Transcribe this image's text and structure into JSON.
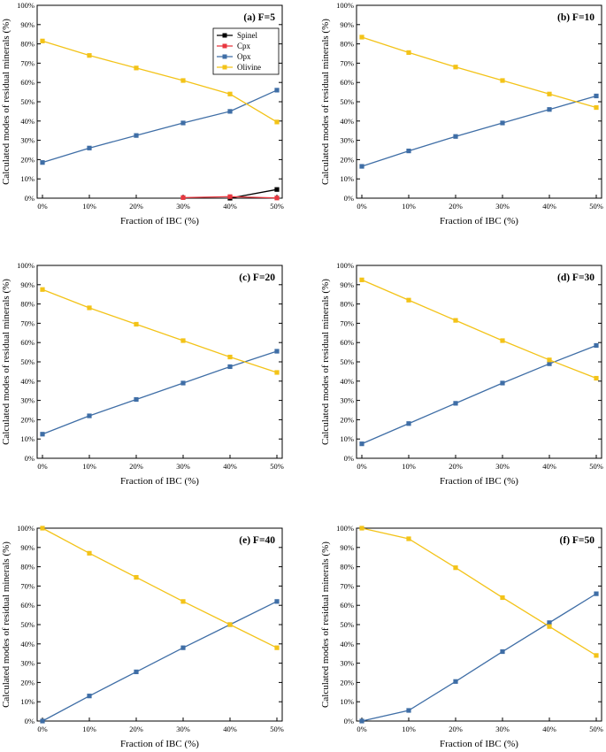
{
  "colors": {
    "Spinel": "#000000",
    "Cpx": "#e8373f",
    "Opx": "#3f6ea6",
    "Olivine": "#f3c318"
  },
  "chart_data": [
    {
      "type": "line",
      "panel_title": "(a)  F=5",
      "xlabel": "Fraction of IBC (%)",
      "ylabel": "Calculated modes of residual minerals (%)",
      "categories": [
        "0%",
        "10%",
        "20%",
        "30%",
        "40%",
        "50%"
      ],
      "ylim": [
        0,
        100
      ],
      "yticks": [
        "0%",
        "10%",
        "20%",
        "30%",
        "40%",
        "50%",
        "60%",
        "70%",
        "80%",
        "90%",
        "100%"
      ],
      "legend": [
        "Spinel",
        "Cpx",
        "Opx",
        "Olivine"
      ],
      "legend_position": "top-right",
      "series": [
        {
          "name": "Spinel",
          "values": [
            null,
            null,
            null,
            null,
            0,
            4.5
          ]
        },
        {
          "name": "Cpx",
          "values": [
            null,
            null,
            null,
            0.3,
            0.8,
            0.1
          ]
        },
        {
          "name": "Opx",
          "values": [
            18.5,
            26,
            32.5,
            39,
            45,
            56
          ]
        },
        {
          "name": "Olivine",
          "values": [
            81.5,
            74,
            67.5,
            61,
            54,
            39.5
          ]
        }
      ]
    },
    {
      "type": "line",
      "panel_title": "(b)  F=10",
      "xlabel": "Fraction of IBC (%)",
      "ylabel": "Calculated modes of residual minerals (%)",
      "categories": [
        "0%",
        "10%",
        "20%",
        "30%",
        "40%",
        "50%"
      ],
      "ylim": [
        0,
        100
      ],
      "yticks": [
        "0%",
        "10%",
        "20%",
        "30%",
        "40%",
        "50%",
        "60%",
        "70%",
        "80%",
        "90%",
        "100%"
      ],
      "series": [
        {
          "name": "Opx",
          "values": [
            16.5,
            24.5,
            32,
            39,
            46,
            53
          ]
        },
        {
          "name": "Olivine",
          "values": [
            83.5,
            75.5,
            68,
            61,
            54,
            47
          ]
        }
      ]
    },
    {
      "type": "line",
      "panel_title": "(c)  F=20",
      "xlabel": "Fraction of IBC (%)",
      "ylabel": "Calculated modes of residual minerals (%)",
      "categories": [
        "0%",
        "10%",
        "20%",
        "30%",
        "40%",
        "50%"
      ],
      "ylim": [
        0,
        100
      ],
      "yticks": [
        "0%",
        "10%",
        "20%",
        "30%",
        "40%",
        "50%",
        "60%",
        "70%",
        "80%",
        "90%",
        "100%"
      ],
      "series": [
        {
          "name": "Opx",
          "values": [
            12.5,
            22,
            30.5,
            39,
            47.5,
            55.5
          ]
        },
        {
          "name": "Olivine",
          "values": [
            87.5,
            78,
            69.5,
            61,
            52.5,
            44.5
          ]
        }
      ]
    },
    {
      "type": "line",
      "panel_title": "(d)  F=30",
      "xlabel": "Fraction of IBC (%)",
      "ylabel": "Calculated modes of residual minerals (%)",
      "categories": [
        "0%",
        "10%",
        "20%",
        "30%",
        "40%",
        "50%"
      ],
      "ylim": [
        0,
        100
      ],
      "yticks": [
        "0%",
        "10%",
        "20%",
        "30%",
        "40%",
        "50%",
        "60%",
        "70%",
        "80%",
        "90%",
        "100%"
      ],
      "series": [
        {
          "name": "Opx",
          "values": [
            7.5,
            18,
            28.5,
            39,
            49,
            58.5
          ]
        },
        {
          "name": "Olivine",
          "values": [
            92.5,
            82,
            71.5,
            61,
            51,
            41.5
          ]
        }
      ]
    },
    {
      "type": "line",
      "panel_title": "(e)  F=40",
      "xlabel": "Fraction of IBC (%)",
      "ylabel": "Calculated modes of residual minerals (%)",
      "categories": [
        "0%",
        "10%",
        "20%",
        "30%",
        "40%",
        "50%"
      ],
      "ylim": [
        0,
        100
      ],
      "yticks": [
        "0%",
        "10%",
        "20%",
        "30%",
        "40%",
        "50%",
        "60%",
        "70%",
        "80%",
        "90%",
        "100%"
      ],
      "series": [
        {
          "name": "Opx",
          "values": [
            0,
            13,
            25.5,
            38,
            50,
            62
          ]
        },
        {
          "name": "Olivine",
          "values": [
            100,
            87,
            74.5,
            62,
            50,
            38
          ]
        }
      ]
    },
    {
      "type": "line",
      "panel_title": "(f)  F=50",
      "xlabel": "Fraction of IBC (%)",
      "ylabel": "Calculated modes of residual minerals (%)",
      "categories": [
        "0%",
        "10%",
        "20%",
        "30%",
        "40%",
        "50%"
      ],
      "ylim": [
        0,
        100
      ],
      "yticks": [
        "0%",
        "10%",
        "20%",
        "30%",
        "40%",
        "50%",
        "60%",
        "70%",
        "80%",
        "90%",
        "100%"
      ],
      "series": [
        {
          "name": "Opx",
          "values": [
            0,
            5.5,
            20.5,
            36,
            51,
            66
          ]
        },
        {
          "name": "Olivine",
          "values": [
            100,
            94.5,
            79.5,
            64,
            49,
            34
          ]
        }
      ]
    }
  ]
}
